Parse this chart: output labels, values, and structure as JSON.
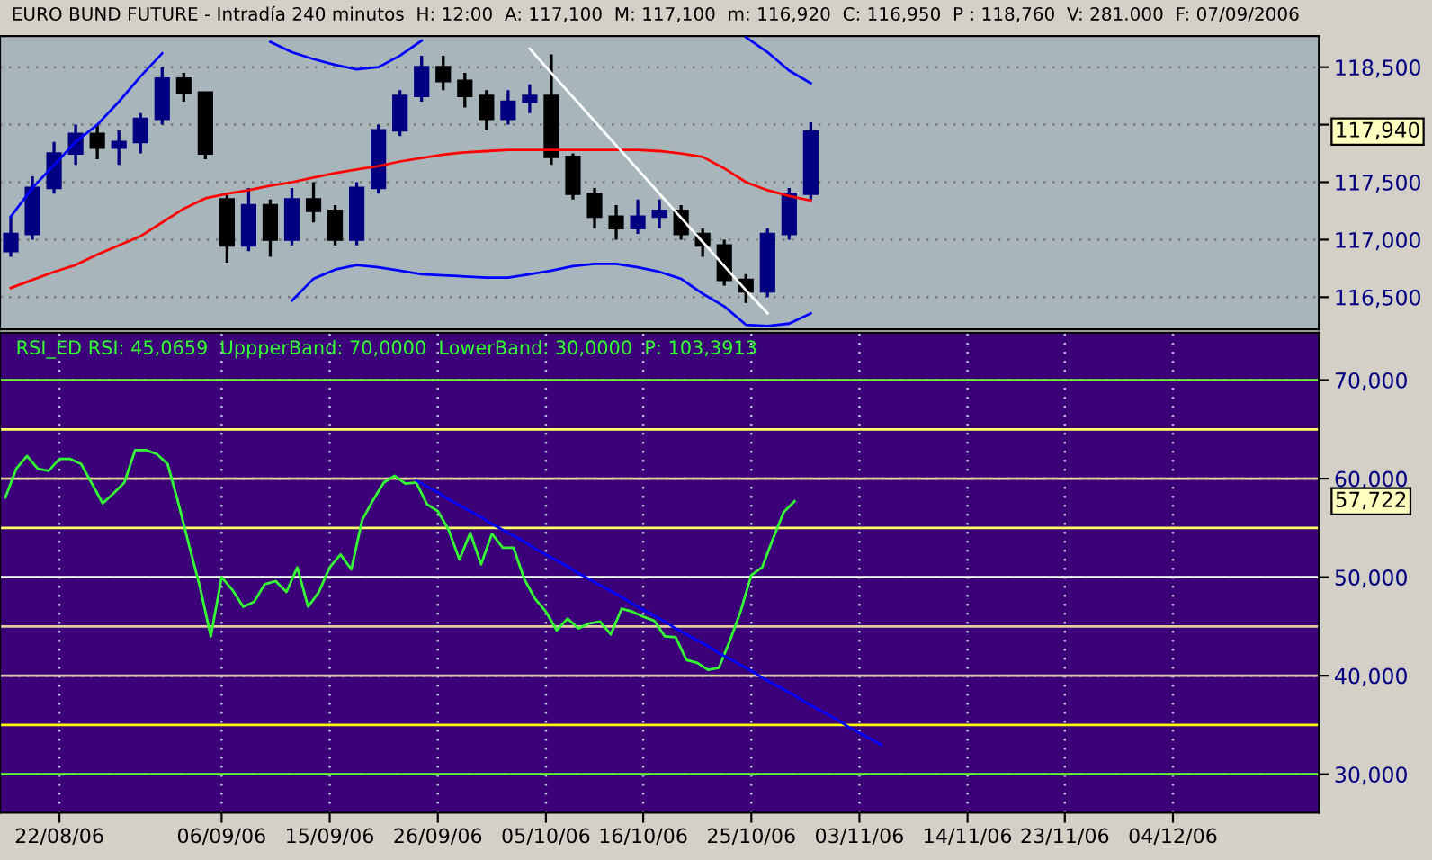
{
  "chart_data": [
    {
      "type": "candlestick",
      "title": "EURO BUND FUTURE - Intradía 240 minutos  H: 12:00  A: 117,100  M: 117,100  m: 116,920  C: 116,950  P : 118,760  V: 281.000  F: 07/09/2006",
      "categories": [
        null,
        null,
        null,
        null,
        null,
        null,
        null,
        null,
        null,
        null,
        null,
        null,
        null,
        null,
        null,
        null,
        null,
        null,
        null,
        null,
        null,
        null,
        null,
        null,
        null,
        null,
        null,
        null,
        null,
        null,
        null,
        null,
        null,
        null,
        null,
        null,
        null,
        null,
        null,
        null,
        null,
        null,
        null,
        null,
        null,
        null,
        null,
        null,
        null,
        null,
        null,
        null,
        null,
        null,
        null,
        null,
        null,
        null,
        null,
        null,
        null
      ],
      "ohlc": [
        [
          116900,
          117200,
          116850,
          117050
        ],
        [
          117050,
          117550,
          117000,
          117450
        ],
        [
          117450,
          117850,
          117400,
          117750
        ],
        [
          117750,
          118000,
          117650,
          117920
        ],
        [
          117920,
          118000,
          117700,
          117800
        ],
        [
          117800,
          117950,
          117650,
          117850
        ],
        [
          117850,
          118100,
          117750,
          118050
        ],
        [
          118050,
          118500,
          118000,
          118400
        ],
        [
          118400,
          118450,
          118200,
          118280
        ],
        [
          118280,
          118280,
          117700,
          117750
        ],
        [
          117350,
          117400,
          116800,
          116950
        ],
        [
          116950,
          117450,
          116900,
          117300
        ],
        [
          117300,
          117350,
          116850,
          117000
        ],
        [
          117000,
          117450,
          116950,
          117350
        ],
        [
          117350,
          117500,
          117150,
          117250
        ],
        [
          117250,
          117300,
          116950,
          117000
        ],
        [
          117000,
          117500,
          116950,
          117450
        ],
        [
          117450,
          118000,
          117400,
          117950
        ],
        [
          117950,
          118300,
          117900,
          118250
        ],
        [
          118250,
          118600,
          118200,
          118500
        ],
        [
          118500,
          118600,
          118300,
          118380
        ],
        [
          118380,
          118450,
          118150,
          118250
        ],
        [
          118250,
          118300,
          117950,
          118050
        ],
        [
          118050,
          118300,
          118000,
          118200
        ],
        [
          118200,
          118350,
          118100,
          118250
        ],
        [
          118250,
          118610,
          117650,
          117720
        ],
        [
          117720,
          117750,
          117350,
          117400
        ],
        [
          117400,
          117450,
          117100,
          117200
        ],
        [
          117200,
          117300,
          117000,
          117100
        ],
        [
          117100,
          117350,
          117050,
          117200
        ],
        [
          117200,
          117350,
          117100,
          117250
        ],
        [
          117250,
          117300,
          117000,
          117050
        ],
        [
          117050,
          117100,
          116850,
          116950
        ],
        [
          116950,
          117000,
          116600,
          116650
        ],
        [
          116650,
          116700,
          116450,
          116550
        ],
        [
          116550,
          117100,
          116500,
          117050
        ],
        [
          117050,
          117450,
          117000,
          117400
        ],
        [
          117400,
          118020,
          117350,
          117940
        ],
        null,
        null,
        null,
        null,
        null,
        null,
        null,
        null,
        null,
        null,
        null,
        null,
        null,
        null,
        null,
        null,
        null,
        null,
        null,
        null,
        null,
        null,
        null
      ],
      "colors": [
        "#000080",
        "#000080",
        "#000080",
        "#000080",
        "#000000",
        "#000080",
        "#000080",
        "#000080",
        "#000000",
        "#000000",
        "#000000",
        "#000080",
        "#000000",
        "#000080",
        "#000000",
        "#000000",
        "#000080",
        "#000080",
        "#000080",
        "#000080",
        "#000000",
        "#000000",
        "#000000",
        "#000080",
        "#000080",
        "#000000",
        "#000000",
        "#000000",
        "#000000",
        "#000080",
        "#000080",
        "#000000",
        "#000000",
        "#000000",
        "#000000",
        "#000080",
        "#000080",
        "#000080",
        null,
        null,
        null,
        null,
        null,
        null,
        null,
        null,
        null,
        null,
        null,
        null,
        null,
        null,
        null,
        null,
        null,
        null,
        null,
        null,
        null,
        null,
        null
      ],
      "series": [
        {
          "type": "line",
          "color": "#0000ff",
          "values": [
            117200,
            117450,
            117650,
            117850,
            118000,
            118200,
            118420,
            118620,
            null,
            null,
            null,
            null,
            118720,
            118630,
            118570,
            118520,
            118480,
            118500,
            118600,
            118730,
            null,
            null,
            null,
            null,
            null,
            null,
            null,
            null,
            null,
            null,
            null,
            null,
            null,
            null,
            118760,
            118630,
            118470,
            118360,
            null,
            null,
            null,
            null,
            null,
            null,
            null,
            null,
            null,
            null,
            null,
            null,
            null,
            null,
            null,
            null,
            null,
            null,
            null,
            null,
            null,
            null,
            null
          ]
        },
        {
          "type": "line",
          "color": "#ff0000",
          "values": [
            116580,
            116650,
            116720,
            116780,
            116870,
            116950,
            117030,
            117150,
            117270,
            117360,
            117400,
            117430,
            117470,
            117500,
            117540,
            117580,
            117610,
            117640,
            117680,
            117710,
            117740,
            117760,
            117770,
            117780,
            117780,
            117780,
            117780,
            117780,
            117780,
            117780,
            117770,
            117750,
            117720,
            117620,
            117500,
            117430,
            117380,
            117340,
            null,
            null,
            null,
            null,
            null,
            null,
            null,
            null,
            null,
            null,
            null,
            null,
            null,
            null,
            null,
            null,
            null,
            null,
            null,
            null,
            null,
            null,
            null
          ]
        },
        {
          "type": "line",
          "color": "#0000ff",
          "values": [
            null,
            null,
            null,
            null,
            null,
            null,
            null,
            null,
            null,
            null,
            null,
            null,
            null,
            116470,
            116660,
            116740,
            116780,
            116760,
            116730,
            116700,
            116690,
            116680,
            116670,
            116670,
            116700,
            116730,
            116770,
            116790,
            116790,
            116760,
            116720,
            116660,
            116530,
            116420,
            116260,
            116250,
            116270,
            116360,
            null,
            null,
            null,
            null,
            null,
            null,
            null,
            null,
            null,
            null,
            null,
            null,
            null,
            null,
            null,
            null,
            null,
            null,
            null,
            null,
            null,
            null,
            null
          ]
        },
        {
          "type": "line",
          "color": "#ffffff",
          "values": [
            null,
            null,
            null,
            null,
            null,
            null,
            null,
            null,
            null,
            null,
            null,
            null,
            null,
            null,
            null,
            null,
            null,
            null,
            null,
            null,
            null,
            null,
            null,
            null,
            118660,
            118450,
            118240,
            118030,
            117820,
            117610,
            117400,
            117190,
            116980,
            116770,
            116560,
            116360,
            null,
            null,
            null,
            null,
            null,
            null,
            null,
            null,
            null,
            null,
            null,
            null,
            null,
            null,
            null,
            null,
            null,
            null,
            null,
            null,
            null,
            null,
            null,
            null,
            null
          ]
        }
      ],
      "ylim": [
        116220,
        118770
      ],
      "yticks": [
        {
          "value": 116500,
          "label": "116,500"
        },
        {
          "value": 117000,
          "label": "117,000"
        },
        {
          "value": 117500,
          "label": "117,500"
        },
        {
          "value": 118000,
          "label": null
        },
        {
          "value": 118500,
          "label": "118,500"
        }
      ],
      "annotations": [
        "117,940"
      ],
      "grid": "y",
      "tick_labels": "y"
    },
    {
      "type": "line",
      "title": "RSI_ED RSI: 45,0659  UppperBand: 70,0000  LowerBand: 30,0000  P: 103,3913",
      "categories": [
        null,
        null,
        null,
        null,
        null,
        "22/08/06",
        null,
        null,
        null,
        null,
        null,
        null,
        null,
        null,
        null,
        null,
        null,
        null,
        null,
        null,
        "06/09/06",
        null,
        null,
        null,
        null,
        null,
        null,
        null,
        null,
        null,
        "15/09/06",
        null,
        null,
        null,
        null,
        null,
        null,
        null,
        null,
        null,
        "26/09/06",
        null,
        null,
        null,
        null,
        null,
        null,
        null,
        null,
        null,
        "05/10/06",
        null,
        null,
        null,
        null,
        null,
        null,
        null,
        null,
        "16/10/06",
        null,
        null,
        null,
        null,
        null,
        null,
        null,
        null,
        null,
        "25/10/06",
        null,
        null,
        null,
        null,
        null,
        null,
        null,
        null,
        null,
        "03/11/06",
        null,
        null,
        null,
        null,
        null,
        null,
        null,
        null,
        null,
        "14/11/06",
        null,
        null,
        null,
        null,
        null,
        null,
        null,
        null,
        "23/11/06",
        null,
        null,
        null,
        null,
        null,
        null,
        null,
        null,
        null,
        "04/12/06",
        null,
        null,
        null,
        null,
        null,
        null,
        null,
        null,
        null,
        null,
        null,
        null,
        null
      ],
      "series": [
        {
          "color": "#33ff33",
          "values": [
            58100,
            61000,
            62300,
            61000,
            60800,
            62000,
            62000,
            61500,
            59500,
            57500,
            58500,
            59600,
            62900,
            62900,
            62500,
            61500,
            57500,
            53200,
            49000,
            44000,
            50000,
            48700,
            47000,
            47500,
            49300,
            49600,
            48500,
            51000,
            47000,
            48500,
            51000,
            52300,
            50800,
            55800,
            57800,
            59600,
            60300,
            59500,
            59600,
            57400,
            56700,
            54800,
            51800,
            54500,
            51300,
            54400,
            53000,
            53000,
            49800,
            47800,
            46500,
            44600,
            45800,
            44800,
            45300,
            45500,
            44200,
            46800,
            46500,
            46000,
            45600,
            44000,
            43900,
            41600,
            41300,
            40600,
            40800,
            43500,
            46500,
            50200,
            51000,
            53900,
            56600,
            57700,
            null,
            null,
            null,
            null,
            null,
            null,
            null,
            null,
            null,
            null,
            null,
            null,
            null,
            null,
            null,
            null,
            null,
            null,
            null,
            null,
            null,
            null,
            null,
            null,
            null,
            null,
            null,
            null,
            null,
            null,
            null,
            null,
            null,
            null,
            null,
            null,
            null,
            null,
            null,
            null,
            null,
            null,
            null,
            null,
            null,
            null,
            null,
            null
          ]
        },
        {
          "color": "#0000ff",
          "values": [
            null,
            null,
            null,
            null,
            null,
            null,
            null,
            null,
            null,
            null,
            null,
            null,
            null,
            null,
            null,
            null,
            null,
            null,
            null,
            null,
            null,
            null,
            null,
            null,
            null,
            null,
            null,
            null,
            null,
            null,
            null,
            null,
            null,
            null,
            null,
            null,
            null,
            null,
            59800,
            59200,
            58600,
            57900,
            57300,
            56700,
            56100,
            55400,
            54800,
            54200,
            53600,
            52900,
            52300,
            51700,
            51100,
            50400,
            49800,
            49200,
            48600,
            48000,
            47300,
            46700,
            46100,
            45500,
            44800,
            44200,
            43600,
            43000,
            42300,
            41700,
            41100,
            40500,
            39800,
            39200,
            38600,
            38000,
            37300,
            36700,
            36100,
            35500,
            34800,
            34200,
            33600,
            33000,
            null,
            null,
            null,
            null,
            null,
            null,
            null,
            null,
            null,
            null,
            null,
            null,
            null,
            null,
            null,
            null,
            null,
            null,
            null,
            null,
            null,
            null,
            null,
            null,
            null,
            null,
            null,
            null,
            null,
            null,
            null,
            null,
            null,
            null,
            null,
            null,
            null,
            null,
            null,
            null
          ]
        }
      ],
      "ylim": [
        26100,
        74800
      ],
      "yticks": [
        {
          "value": 30000,
          "label": "30,000"
        },
        {
          "value": 40000,
          "label": "40,000"
        },
        {
          "value": 50000,
          "label": "50,000"
        },
        {
          "value": 60000,
          "label": "60,000"
        },
        {
          "value": 70000,
          "label": "70,000"
        }
      ],
      "ref_lines": [
        {
          "axis": "y",
          "value": 70000,
          "color": "#66ff33"
        },
        {
          "axis": "y",
          "value": 65000,
          "color": "#ffff66"
        },
        {
          "axis": "y",
          "value": 60000,
          "color": "#e8d890"
        },
        {
          "axis": "y",
          "value": 55000,
          "color": "#ffff66"
        },
        {
          "axis": "y",
          "value": 50000,
          "color": "#ffffff"
        },
        {
          "axis": "y",
          "value": 45000,
          "color": "#e0d0a0"
        },
        {
          "axis": "y",
          "value": 40000,
          "color": "#e0d0a0"
        },
        {
          "axis": "y",
          "value": 35000,
          "color": "#ffff00"
        },
        {
          "axis": "y",
          "value": 30000,
          "color": "#66ff33"
        }
      ],
      "annotations": [
        "57,722"
      ],
      "grid": true
    }
  ]
}
